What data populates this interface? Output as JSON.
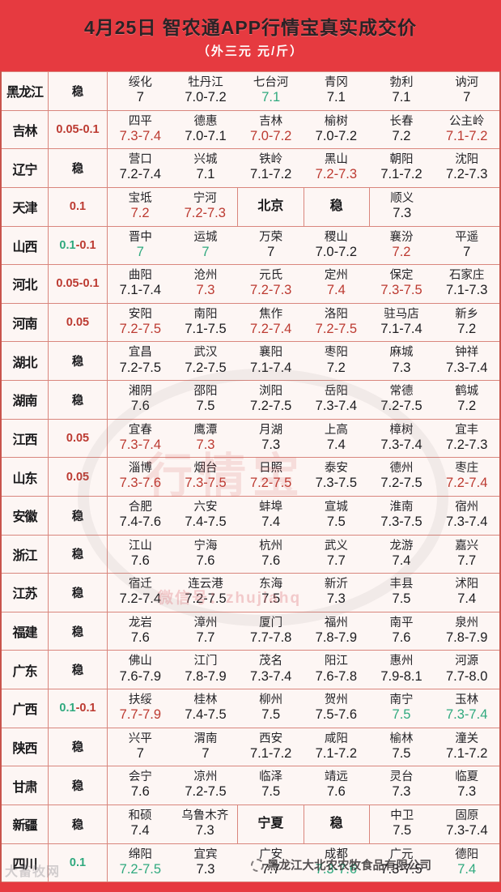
{
  "header": {
    "title": "4月25日  智农通APP行情宝真实成交价",
    "subtitle": "（外三元  元/斤）"
  },
  "colors": {
    "black": "#1c1c1f",
    "red": "#bc3a31",
    "green": "#2fa97e"
  },
  "watermarks": {
    "seal_text": "行情宝",
    "wechat_text": "微信号：zhujiahq",
    "corner_text": "大畜牧网",
    "company_text": "黑龙江大北农农牧食品有限公司"
  },
  "rows": [
    {
      "province": "黑龙江",
      "change": {
        "segments": [
          {
            "text": "稳",
            "color": "black"
          }
        ]
      },
      "cells": [
        {
          "city": "绥化",
          "price": "7",
          "pc": "black"
        },
        {
          "city": "牡丹江",
          "price": "7.0-7.2",
          "pc": "black"
        },
        {
          "city": "七台河",
          "price": "7.1",
          "pc": "green"
        },
        {
          "city": "青冈",
          "price": "7.1",
          "pc": "black"
        },
        {
          "city": "勃利",
          "price": "7.1",
          "pc": "black"
        },
        {
          "city": "讷河",
          "price": "7",
          "pc": "black"
        }
      ]
    },
    {
      "province": "吉林",
      "change": {
        "segments": [
          {
            "text": "0.05-0.1",
            "color": "red"
          }
        ]
      },
      "cells": [
        {
          "city": "四平",
          "price": "7.3-7.4",
          "pc": "red"
        },
        {
          "city": "德惠",
          "price": "7.0-7.1",
          "pc": "black"
        },
        {
          "city": "吉林",
          "price": "7.0-7.2",
          "pc": "red"
        },
        {
          "city": "榆树",
          "price": "7.0-7.2",
          "pc": "black"
        },
        {
          "city": "长春",
          "price": "7.2",
          "pc": "black"
        },
        {
          "city": "公主岭",
          "price": "7.1-7.2",
          "pc": "red"
        }
      ]
    },
    {
      "province": "辽宁",
      "change": {
        "segments": [
          {
            "text": "稳",
            "color": "black"
          }
        ]
      },
      "cells": [
        {
          "city": "营口",
          "price": "7.2-7.4",
          "pc": "black"
        },
        {
          "city": "兴城",
          "price": "7.1",
          "pc": "black"
        },
        {
          "city": "铁岭",
          "price": "7.1-7.2",
          "pc": "black"
        },
        {
          "city": "黑山",
          "price": "7.2-7.3",
          "pc": "red"
        },
        {
          "city": "朝阳",
          "price": "7.1-7.2",
          "pc": "black"
        },
        {
          "city": "沈阳",
          "price": "7.2-7.3",
          "pc": "black"
        }
      ]
    },
    {
      "province": "天津",
      "change": {
        "segments": [
          {
            "text": "0.1",
            "color": "red"
          }
        ]
      },
      "cells": [
        {
          "city": "宝坻",
          "price": "7.2",
          "pc": "red"
        },
        {
          "city": "宁河",
          "price": "7.2-7.3",
          "pc": "red"
        },
        {
          "label": "北京",
          "bl": true
        },
        {
          "label": "稳",
          "bl": true
        },
        {
          "city": "顺义",
          "price": "7.3",
          "pc": "black",
          "span": 2,
          "bl": true
        }
      ]
    },
    {
      "province": "山西",
      "change": {
        "segments": [
          {
            "text": "0.1",
            "color": "green"
          },
          {
            "text": "-0.1",
            "color": "red"
          }
        ]
      },
      "cells": [
        {
          "city": "晋中",
          "price": "7",
          "pc": "green"
        },
        {
          "city": "运城",
          "price": "7",
          "pc": "green"
        },
        {
          "city": "万荣",
          "price": "7",
          "pc": "black"
        },
        {
          "city": "稷山",
          "price": "7.0-7.2",
          "pc": "black"
        },
        {
          "city": "襄汾",
          "price": "7.2",
          "pc": "red"
        },
        {
          "city": "平遥",
          "price": "7",
          "pc": "black"
        }
      ]
    },
    {
      "province": "河北",
      "change": {
        "segments": [
          {
            "text": "0.05-0.1",
            "color": "red"
          }
        ]
      },
      "cells": [
        {
          "city": "曲阳",
          "price": "7.1-7.4",
          "pc": "black"
        },
        {
          "city": "沧州",
          "price": "7.3",
          "pc": "red"
        },
        {
          "city": "元氏",
          "price": "7.2-7.3",
          "pc": "red"
        },
        {
          "city": "定州",
          "price": "7.4",
          "pc": "red"
        },
        {
          "city": "保定",
          "price": "7.3-7.5",
          "pc": "red"
        },
        {
          "city": "石家庄",
          "price": "7.1-7.3",
          "pc": "black"
        }
      ]
    },
    {
      "province": "河南",
      "change": {
        "segments": [
          {
            "text": "0.05",
            "color": "red"
          }
        ]
      },
      "cells": [
        {
          "city": "安阳",
          "price": "7.2-7.5",
          "pc": "red"
        },
        {
          "city": "南阳",
          "price": "7.1-7.5",
          "pc": "black"
        },
        {
          "city": "焦作",
          "price": "7.2-7.4",
          "pc": "red"
        },
        {
          "city": "洛阳",
          "price": "7.2-7.5",
          "pc": "red"
        },
        {
          "city": "驻马店",
          "price": "7.1-7.4",
          "pc": "black"
        },
        {
          "city": "新乡",
          "price": "7.2",
          "pc": "black"
        }
      ]
    },
    {
      "province": "湖北",
      "change": {
        "segments": [
          {
            "text": "稳",
            "color": "black"
          }
        ]
      },
      "cells": [
        {
          "city": "宜昌",
          "price": "7.2-7.5",
          "pc": "black"
        },
        {
          "city": "武汉",
          "price": "7.2-7.5",
          "pc": "black"
        },
        {
          "city": "襄阳",
          "price": "7.1-7.4",
          "pc": "black"
        },
        {
          "city": "枣阳",
          "price": "7.2",
          "pc": "black"
        },
        {
          "city": "麻城",
          "price": "7.3",
          "pc": "black"
        },
        {
          "city": "钟祥",
          "price": "7.3-7.4",
          "pc": "black"
        }
      ]
    },
    {
      "province": "湖南",
      "change": {
        "segments": [
          {
            "text": "稳",
            "color": "black"
          }
        ]
      },
      "cells": [
        {
          "city": "湘阴",
          "price": "7.6",
          "pc": "black"
        },
        {
          "city": "邵阳",
          "price": "7.5",
          "pc": "black"
        },
        {
          "city": "浏阳",
          "price": "7.2-7.5",
          "pc": "black"
        },
        {
          "city": "岳阳",
          "price": "7.3-7.4",
          "pc": "black"
        },
        {
          "city": "常德",
          "price": "7.2-7.5",
          "pc": "black"
        },
        {
          "city": "鹤城",
          "price": "7.2",
          "pc": "black"
        }
      ]
    },
    {
      "province": "江西",
      "change": {
        "segments": [
          {
            "text": "0.05",
            "color": "red"
          }
        ]
      },
      "cells": [
        {
          "city": "宜春",
          "price": "7.3-7.4",
          "pc": "red"
        },
        {
          "city": "鹰潭",
          "price": "7.3",
          "pc": "red"
        },
        {
          "city": "月湖",
          "price": "7.3",
          "pc": "black"
        },
        {
          "city": "上高",
          "price": "7.4",
          "pc": "black"
        },
        {
          "city": "樟树",
          "price": "7.3-7.4",
          "pc": "black"
        },
        {
          "city": "宜丰",
          "price": "7.2-7.3",
          "pc": "black"
        }
      ]
    },
    {
      "province": "山东",
      "change": {
        "segments": [
          {
            "text": "0.05",
            "color": "red"
          }
        ]
      },
      "cells": [
        {
          "city": "淄博",
          "price": "7.3-7.6",
          "pc": "red"
        },
        {
          "city": "烟台",
          "price": "7.3-7.5",
          "pc": "red"
        },
        {
          "city": "日照",
          "price": "7.2-7.5",
          "pc": "red"
        },
        {
          "city": "泰安",
          "price": "7.3-7.5",
          "pc": "black"
        },
        {
          "city": "德州",
          "price": "7.2-7.5",
          "pc": "black"
        },
        {
          "city": "枣庄",
          "price": "7.2-7.4",
          "pc": "red"
        }
      ]
    },
    {
      "province": "安徽",
      "change": {
        "segments": [
          {
            "text": "稳",
            "color": "black"
          }
        ]
      },
      "cells": [
        {
          "city": "合肥",
          "price": "7.4-7.6",
          "pc": "black"
        },
        {
          "city": "六安",
          "price": "7.4-7.5",
          "pc": "black"
        },
        {
          "city": "蚌埠",
          "price": "7.4",
          "pc": "black"
        },
        {
          "city": "宣城",
          "price": "7.5",
          "pc": "black"
        },
        {
          "city": "淮南",
          "price": "7.3-7.5",
          "pc": "black"
        },
        {
          "city": "宿州",
          "price": "7.3-7.4",
          "pc": "black"
        }
      ]
    },
    {
      "province": "浙江",
      "change": {
        "segments": [
          {
            "text": "稳",
            "color": "black"
          }
        ]
      },
      "cells": [
        {
          "city": "江山",
          "price": "7.6",
          "pc": "black"
        },
        {
          "city": "宁海",
          "price": "7.6",
          "pc": "black"
        },
        {
          "city": "杭州",
          "price": "7.6",
          "pc": "black"
        },
        {
          "city": "武义",
          "price": "7.7",
          "pc": "black"
        },
        {
          "city": "龙游",
          "price": "7.4",
          "pc": "black"
        },
        {
          "city": "嘉兴",
          "price": "7.7",
          "pc": "black"
        }
      ]
    },
    {
      "province": "江苏",
      "change": {
        "segments": [
          {
            "text": "稳",
            "color": "black"
          }
        ]
      },
      "cells": [
        {
          "city": "宿迁",
          "price": "7.2-7.4",
          "pc": "black"
        },
        {
          "city": "连云港",
          "price": "7.2-7.5",
          "pc": "black"
        },
        {
          "city": "东海",
          "price": "7.5",
          "pc": "black"
        },
        {
          "city": "新沂",
          "price": "7.3",
          "pc": "black"
        },
        {
          "city": "丰县",
          "price": "7.5",
          "pc": "black"
        },
        {
          "city": "沭阳",
          "price": "7.4",
          "pc": "black"
        }
      ]
    },
    {
      "province": "福建",
      "change": {
        "segments": [
          {
            "text": "稳",
            "color": "black"
          }
        ]
      },
      "cells": [
        {
          "city": "龙岩",
          "price": "7.6",
          "pc": "black"
        },
        {
          "city": "漳州",
          "price": "7.7",
          "pc": "black"
        },
        {
          "city": "厦门",
          "price": "7.7-7.8",
          "pc": "black"
        },
        {
          "city": "福州",
          "price": "7.8-7.9",
          "pc": "black"
        },
        {
          "city": "南平",
          "price": "7.6",
          "pc": "black"
        },
        {
          "city": "泉州",
          "price": "7.8-7.9",
          "pc": "black"
        }
      ]
    },
    {
      "province": "广东",
      "change": {
        "segments": [
          {
            "text": "稳",
            "color": "black"
          }
        ]
      },
      "cells": [
        {
          "city": "佛山",
          "price": "7.6-7.9",
          "pc": "black"
        },
        {
          "city": "江门",
          "price": "7.8-7.9",
          "pc": "black"
        },
        {
          "city": "茂名",
          "price": "7.3-7.4",
          "pc": "black"
        },
        {
          "city": "阳江",
          "price": "7.6-7.8",
          "pc": "black"
        },
        {
          "city": "惠州",
          "price": "7.9-8.1",
          "pc": "black"
        },
        {
          "city": "河源",
          "price": "7.7-8.0",
          "pc": "black"
        }
      ]
    },
    {
      "province": "广西",
      "change": {
        "segments": [
          {
            "text": "0.1",
            "color": "green"
          },
          {
            "text": "-0.1",
            "color": "red"
          }
        ]
      },
      "cells": [
        {
          "city": "扶绥",
          "price": "7.7-7.9",
          "pc": "red"
        },
        {
          "city": "桂林",
          "price": "7.4-7.5",
          "pc": "black"
        },
        {
          "city": "柳州",
          "price": "7.5",
          "pc": "black"
        },
        {
          "city": "贺州",
          "price": "7.5-7.6",
          "pc": "black"
        },
        {
          "city": "南宁",
          "price": "7.5",
          "pc": "green"
        },
        {
          "city": "玉林",
          "price": "7.3-7.4",
          "pc": "green"
        }
      ]
    },
    {
      "province": "陕西",
      "change": {
        "segments": [
          {
            "text": "稳",
            "color": "black"
          }
        ]
      },
      "cells": [
        {
          "city": "兴平",
          "price": "7",
          "pc": "black"
        },
        {
          "city": "渭南",
          "price": "7",
          "pc": "black"
        },
        {
          "city": "西安",
          "price": "7.1-7.2",
          "pc": "black"
        },
        {
          "city": "咸阳",
          "price": "7.1-7.2",
          "pc": "black"
        },
        {
          "city": "榆林",
          "price": "7.5",
          "pc": "black"
        },
        {
          "city": "潼关",
          "price": "7.1-7.2",
          "pc": "black"
        }
      ]
    },
    {
      "province": "甘肃",
      "change": {
        "segments": [
          {
            "text": "稳",
            "color": "black"
          }
        ]
      },
      "cells": [
        {
          "city": "会宁",
          "price": "7.6",
          "pc": "black"
        },
        {
          "city": "凉州",
          "price": "7.2-7.5",
          "pc": "black"
        },
        {
          "city": "临泽",
          "price": "7.5",
          "pc": "black"
        },
        {
          "city": "靖远",
          "price": "7.6",
          "pc": "black"
        },
        {
          "city": "灵台",
          "price": "7.3",
          "pc": "black"
        },
        {
          "city": "临夏",
          "price": "7.3",
          "pc": "black"
        }
      ]
    },
    {
      "province": "新疆",
      "change": {
        "segments": [
          {
            "text": "稳",
            "color": "black"
          }
        ]
      },
      "cells": [
        {
          "city": "和硕",
          "price": "7.4",
          "pc": "black"
        },
        {
          "city": "乌鲁木齐",
          "price": "7.3",
          "pc": "black"
        },
        {
          "label": "宁夏",
          "bl": true
        },
        {
          "label": "稳",
          "bl": true
        },
        {
          "city": "中卫",
          "price": "7.5",
          "pc": "black",
          "bl": true
        },
        {
          "city": "固原",
          "price": "7.3-7.4",
          "pc": "black"
        }
      ]
    },
    {
      "province": "四川",
      "change": {
        "segments": [
          {
            "text": "0.1",
            "color": "green"
          }
        ]
      },
      "cells": [
        {
          "city": "绵阳",
          "price": "7.2-7.5",
          "pc": "green"
        },
        {
          "city": "宜宾",
          "price": "7.3",
          "pc": "black"
        },
        {
          "city": "广安",
          "price": "7.7",
          "pc": "black"
        },
        {
          "city": "成都",
          "price": "7.3-7.6",
          "pc": "green"
        },
        {
          "city": "广元",
          "price": "7.3-7.5",
          "pc": "black"
        },
        {
          "city": "德阳",
          "price": "7.4",
          "pc": "green"
        }
      ]
    }
  ]
}
